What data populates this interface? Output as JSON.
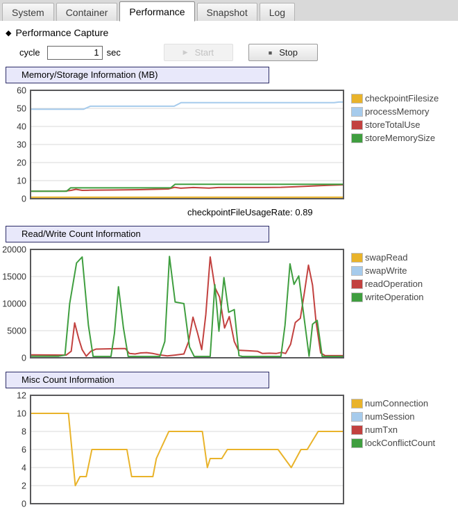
{
  "tabs": {
    "items": [
      {
        "label": "System",
        "active": false
      },
      {
        "label": "Container",
        "active": false
      },
      {
        "label": "Performance",
        "active": true
      },
      {
        "label": "Snapshot",
        "active": false
      },
      {
        "label": "Log",
        "active": false
      }
    ]
  },
  "capture": {
    "diamond_glyph": "◆",
    "title": "Performance Capture",
    "cycle_label": "cycle",
    "cycle_value": "1",
    "cycle_unit": "sec",
    "play_glyph": "▶",
    "stop_glyph": "■",
    "start_label": "Start",
    "stop_label": "Stop"
  },
  "colors": {
    "header_bg": "#e8e8fa",
    "header_border": "#2b2b66",
    "chart_border": "#58585a",
    "gridline": "#d8d8d8",
    "series_yellow": "#e9b32a",
    "series_blue": "#a6cbec",
    "series_red": "#c2413f",
    "series_green": "#3f9e3f"
  },
  "chart_data": [
    {
      "type": "line",
      "title": "Memory/Storage Information (MB)",
      "note": "checkpointFileUsageRate: 0.89",
      "xlabel": "",
      "ylabel": "",
      "ylim": [
        0,
        60
      ],
      "yticks": [
        0,
        10,
        20,
        30,
        40,
        50,
        60
      ],
      "grid": true,
      "legend_position": "right",
      "x_unit": "percent-of-width",
      "series": [
        {
          "name": "checkpointFilesize",
          "color": "#e9b32a",
          "points": [
            [
              0,
              0.8
            ],
            [
              100,
              0.8
            ]
          ]
        },
        {
          "name": "processMemory",
          "color": "#a6cbec",
          "points": [
            [
              0,
              49.5
            ],
            [
              16.9,
              49.5
            ],
            [
              19.1,
              51.2
            ],
            [
              45.9,
              51.2
            ],
            [
              48.1,
              53.2
            ],
            [
              97,
              53.2
            ],
            [
              98.5,
              53.5
            ],
            [
              100,
              53.5
            ]
          ]
        },
        {
          "name": "storeTotalUse",
          "color": "#c2413f",
          "points": [
            [
              0,
              4.1
            ],
            [
              11,
              4.2
            ],
            [
              13,
              4.6
            ],
            [
              14.5,
              5.2
            ],
            [
              16.5,
              4.6
            ],
            [
              19,
              4.7
            ],
            [
              26,
              4.8
            ],
            [
              35,
              5
            ],
            [
              44,
              5.4
            ],
            [
              46,
              6.3
            ],
            [
              48,
              5.8
            ],
            [
              52,
              6.2
            ],
            [
              57,
              5.9
            ],
            [
              60,
              6.2
            ],
            [
              75,
              6.2
            ],
            [
              80,
              6.3
            ],
            [
              85,
              6.6
            ],
            [
              90,
              7
            ],
            [
              95,
              7.4
            ],
            [
              100,
              7.7
            ]
          ]
        },
        {
          "name": "storeMemorySize",
          "color": "#3f9e3f",
          "points": [
            [
              0,
              4.1
            ],
            [
              11.5,
              4.1
            ],
            [
              12.8,
              6
            ],
            [
              44.8,
              6
            ],
            [
              46.2,
              8
            ],
            [
              100,
              8
            ]
          ]
        }
      ]
    },
    {
      "type": "line",
      "title": "Read/Write Count Information",
      "xlabel": "",
      "ylabel": "",
      "ylim": [
        0,
        20000
      ],
      "yticks": [
        0,
        5000,
        10000,
        15000,
        20000
      ],
      "grid": true,
      "legend_position": "right",
      "x_unit": "percent-of-width",
      "series": [
        {
          "name": "swapRead",
          "color": "#e9b32a",
          "points": [
            [
              0,
              0
            ],
            [
              100,
              0
            ]
          ]
        },
        {
          "name": "swapWrite",
          "color": "#a6cbec",
          "points": [
            [
              0,
              0
            ],
            [
              100,
              0
            ]
          ]
        },
        {
          "name": "readOperation",
          "color": "#c2413f",
          "points": [
            [
              0,
              550
            ],
            [
              11.4,
              500
            ],
            [
              13,
              1200
            ],
            [
              14.1,
              6450
            ],
            [
              15.4,
              3500
            ],
            [
              16.5,
              1500
            ],
            [
              17.8,
              300
            ],
            [
              19.3,
              1200
            ],
            [
              20.9,
              1600
            ],
            [
              28.6,
              1700
            ],
            [
              30.3,
              1700
            ],
            [
              31.6,
              800
            ],
            [
              33.4,
              700
            ],
            [
              35.2,
              900
            ],
            [
              37.1,
              950
            ],
            [
              39.1,
              800
            ],
            [
              41.1,
              550
            ],
            [
              43.7,
              350
            ],
            [
              46.2,
              500
            ],
            [
              49,
              700
            ],
            [
              50.5,
              3000
            ],
            [
              51.9,
              7500
            ],
            [
              53.4,
              4500
            ],
            [
              54.7,
              1500
            ],
            [
              56,
              8000
            ],
            [
              57.4,
              18600
            ],
            [
              58.9,
              13000
            ],
            [
              60.4,
              11200
            ],
            [
              62,
              5500
            ],
            [
              63.5,
              7600
            ],
            [
              65.1,
              3000
            ],
            [
              66.4,
              1400
            ],
            [
              69.7,
              1300
            ],
            [
              72.5,
              1200
            ],
            [
              74.1,
              800
            ],
            [
              76.3,
              850
            ],
            [
              78.5,
              800
            ],
            [
              80.2,
              1000
            ],
            [
              81.5,
              800
            ],
            [
              83.1,
              2500
            ],
            [
              84.6,
              6500
            ],
            [
              86.2,
              7300
            ],
            [
              87.5,
              12000
            ],
            [
              88.8,
              17100
            ],
            [
              90.1,
              13400
            ],
            [
              91.2,
              6800
            ],
            [
              92.7,
              900
            ],
            [
              94.1,
              400
            ],
            [
              100,
              400
            ]
          ]
        },
        {
          "name": "writeOperation",
          "color": "#3f9e3f",
          "points": [
            [
              0,
              300
            ],
            [
              9,
              300
            ],
            [
              11,
              500
            ],
            [
              12.5,
              10000
            ],
            [
              14.7,
              17500
            ],
            [
              16.5,
              18600
            ],
            [
              18.5,
              6000
            ],
            [
              20,
              250
            ],
            [
              25.7,
              250
            ],
            [
              26.8,
              4500
            ],
            [
              28.1,
              13100
            ],
            [
              29.7,
              5500
            ],
            [
              31.2,
              250
            ],
            [
              41.3,
              250
            ],
            [
              42.9,
              3000
            ],
            [
              44.4,
              18700
            ],
            [
              46.2,
              10300
            ],
            [
              49,
              10000
            ],
            [
              50.8,
              2000
            ],
            [
              52.3,
              250
            ],
            [
              57.4,
              250
            ],
            [
              58.9,
              13500
            ],
            [
              60.2,
              4900
            ],
            [
              61.8,
              14800
            ],
            [
              63.3,
              8400
            ],
            [
              65.1,
              8900
            ],
            [
              66.6,
              400
            ],
            [
              67.7,
              250
            ],
            [
              80,
              250
            ],
            [
              81.3,
              6000
            ],
            [
              82.9,
              17350
            ],
            [
              84.2,
              13550
            ],
            [
              85.7,
              15100
            ],
            [
              87.5,
              7000
            ],
            [
              89,
              300
            ],
            [
              90.1,
              6200
            ],
            [
              91.6,
              6900
            ],
            [
              93.2,
              250
            ],
            [
              100,
              250
            ]
          ]
        }
      ]
    },
    {
      "type": "line",
      "title": "Misc Count Information",
      "xlabel": "",
      "ylabel": "",
      "ylim": [
        0,
        12
      ],
      "yticks": [
        0,
        2,
        4,
        6,
        8,
        10,
        12
      ],
      "grid": true,
      "legend_position": "right",
      "x_unit": "percent-of-width",
      "series": [
        {
          "name": "numConnection",
          "color": "#e9b32a",
          "points": [
            [
              0,
              10
            ],
            [
              12.1,
              10
            ],
            [
              14.3,
              2
            ],
            [
              15.8,
              3
            ],
            [
              17.8,
              3
            ],
            [
              19.6,
              6
            ],
            [
              30.8,
              6
            ],
            [
              32.3,
              3
            ],
            [
              39.1,
              3
            ],
            [
              40.2,
              5
            ],
            [
              41.5,
              6
            ],
            [
              44.2,
              8
            ],
            [
              54.9,
              8
            ],
            [
              56.5,
              4
            ],
            [
              57.4,
              5
            ],
            [
              61.1,
              5
            ],
            [
              62.9,
              6
            ],
            [
              79.1,
              6
            ],
            [
              83.3,
              4
            ],
            [
              86.4,
              6
            ],
            [
              88.4,
              6
            ],
            [
              91.9,
              8
            ],
            [
              100,
              8
            ]
          ]
        },
        {
          "name": "numSession",
          "color": "#a6cbec",
          "points": [
            [
              0,
              0
            ],
            [
              100,
              0
            ]
          ]
        },
        {
          "name": "numTxn",
          "color": "#c2413f",
          "points": [
            [
              0,
              0
            ],
            [
              100,
              0
            ]
          ]
        },
        {
          "name": "lockConflictCount",
          "color": "#3f9e3f",
          "points": [
            [
              0,
              0
            ],
            [
              100,
              0
            ]
          ]
        }
      ]
    }
  ]
}
